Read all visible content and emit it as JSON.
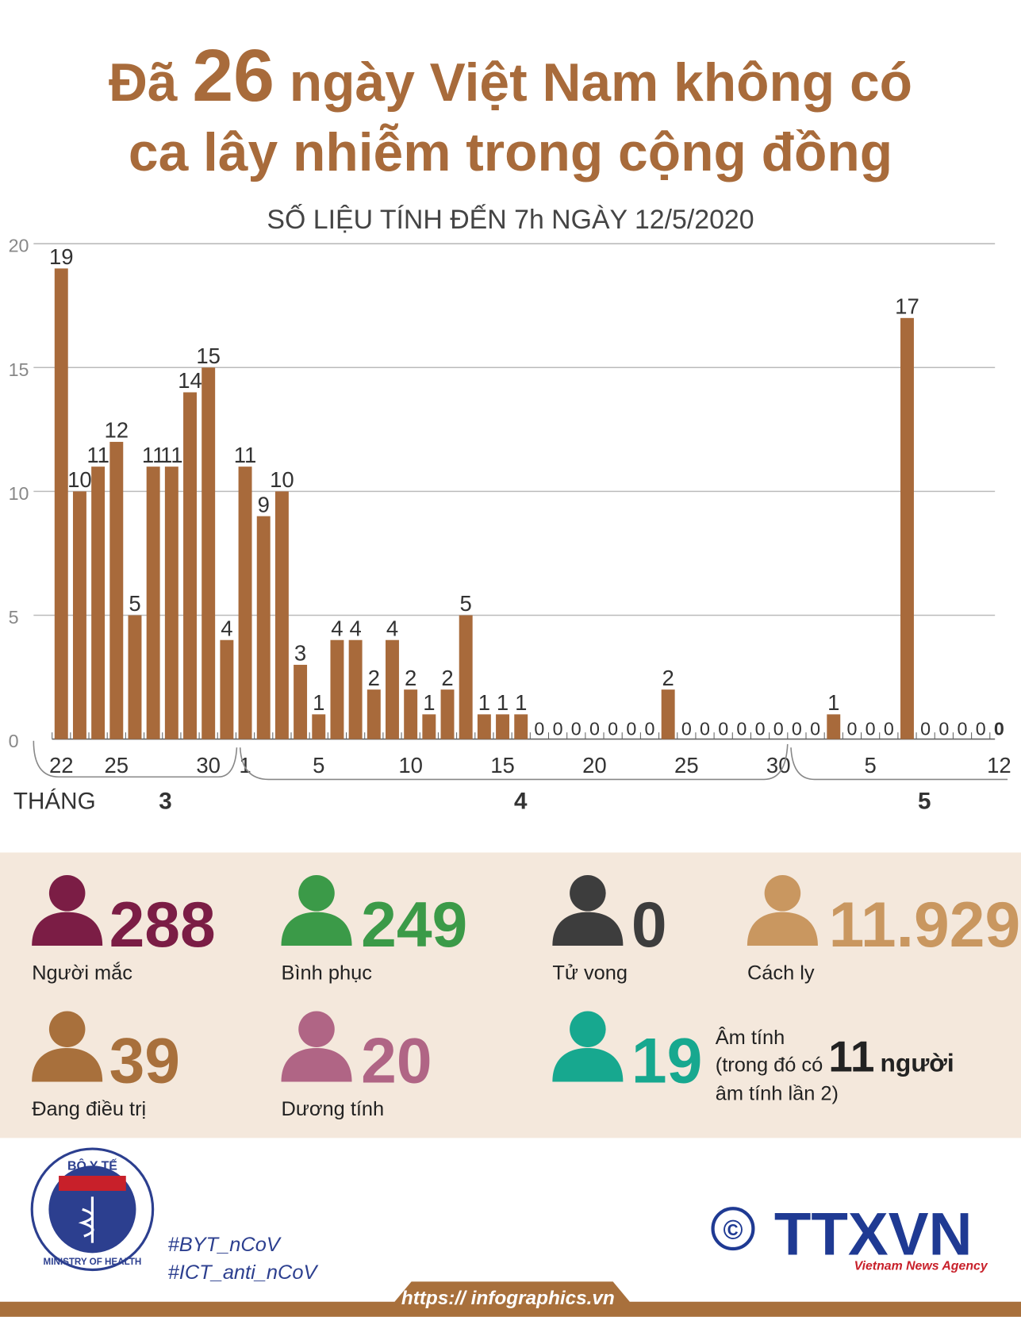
{
  "chart_data": {
    "type": "bar",
    "title": {
      "prefix": "Đã",
      "number": "26",
      "rest": "ngày Việt Nam không có",
      "line2": "ca lây nhiễm trong cộng đồng"
    },
    "subtitle": "SỐ LIỆU TÍNH ĐẾN 7h NGÀY 12/5/2020",
    "categories": [
      "22",
      null,
      null,
      "25",
      null,
      null,
      null,
      null,
      "30",
      null,
      "1",
      null,
      null,
      null,
      "5",
      null,
      null,
      null,
      null,
      "10",
      null,
      null,
      null,
      null,
      "15",
      null,
      null,
      null,
      null,
      "20",
      null,
      null,
      null,
      null,
      "25",
      null,
      null,
      null,
      null,
      "30",
      null,
      null,
      null,
      null,
      "5",
      null,
      null,
      null,
      null,
      null,
      null,
      "12"
    ],
    "values": [
      19,
      10,
      11,
      12,
      5,
      11,
      11,
      14,
      15,
      4,
      11,
      9,
      10,
      3,
      1,
      4,
      4,
      2,
      4,
      2,
      1,
      2,
      5,
      1,
      1,
      1,
      0,
      0,
      0,
      0,
      0,
      0,
      0,
      2,
      0,
      0,
      0,
      0,
      0,
      0,
      0,
      0,
      1,
      0,
      0,
      0,
      17,
      0,
      0,
      0,
      0,
      0
    ],
    "color": "#a86a3b",
    "ylim": [
      0,
      20
    ],
    "yticks": [
      0,
      5,
      10,
      15,
      20
    ],
    "grid": true,
    "month_axis_label": "THÁNG",
    "months": [
      "3",
      "4",
      "5"
    ]
  },
  "stats": [
    {
      "value": "288",
      "label": "Người mắc",
      "color": "#7b1d45"
    },
    {
      "value": "249",
      "label": "Bình phục",
      "color": "#3b9a48"
    },
    {
      "value": "0",
      "label": "Tử vong",
      "color": "#3d3d3d"
    },
    {
      "value": "11.929",
      "label": "Cách ly",
      "color": "#c99760"
    },
    {
      "value": "39",
      "label": "Đang điều trị",
      "color": "#a8703c"
    },
    {
      "value": "20",
      "label": "Dương tính",
      "color": "#b06585"
    },
    {
      "value": "19",
      "label": "Âm tính",
      "color": "#17a88f"
    }
  ],
  "negative_note": {
    "before": "(trong đó có",
    "number": "11",
    "after": "người",
    "line3": "âm tính lần 2)"
  },
  "footer": {
    "logo_top": "BỘ Y TẾ",
    "logo_bottom": "MINISTRY OF HEALTH",
    "hashtags": [
      "#BYT_nCoV",
      "#ICT_anti_nCoV"
    ],
    "copyright": "©",
    "agency": "TTXVN",
    "agency_sub": "Vietnam News Agency",
    "url": "https:// infographics.vn"
  }
}
